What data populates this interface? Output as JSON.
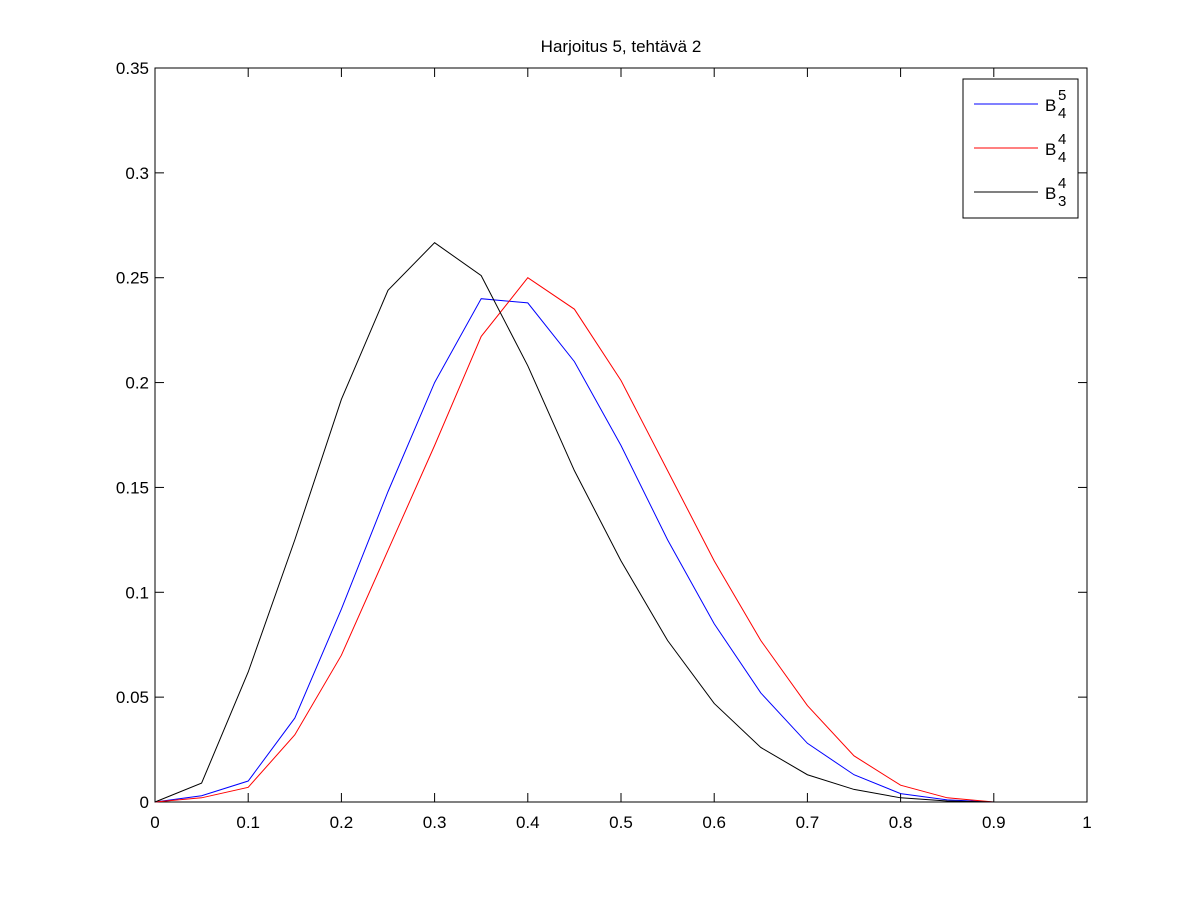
{
  "chart_data": {
    "type": "line",
    "title": "Harjoitus 5, tehtävä 2",
    "x": [
      0,
      0.05,
      0.1,
      0.15,
      0.2,
      0.25,
      0.3,
      0.35,
      0.4,
      0.45,
      0.5,
      0.55,
      0.6,
      0.65,
      0.7,
      0.75,
      0.8,
      0.85,
      0.9,
      0.95,
      1
    ],
    "series": [
      {
        "name": "B",
        "subscript": "4",
        "superscript": "5",
        "color": "#0000ff",
        "values": [
          0,
          0.003,
          0.01,
          0.04,
          0.092,
          0.148,
          0.2,
          0.24,
          0.238,
          0.21,
          0.17,
          0.125,
          0.085,
          0.052,
          0.028,
          0.013,
          0.004,
          0.001,
          0,
          0,
          0
        ]
      },
      {
        "name": "B",
        "subscript": "4",
        "superscript": "4",
        "color": "#ff0000",
        "values": [
          0,
          0.002,
          0.007,
          0.032,
          0.07,
          0.12,
          0.17,
          0.222,
          0.25,
          0.235,
          0.201,
          0.158,
          0.115,
          0.077,
          0.046,
          0.022,
          0.008,
          0.002,
          0,
          0,
          0
        ]
      },
      {
        "name": "B",
        "subscript": "3",
        "superscript": "4",
        "color": "#000000",
        "values": [
          0,
          0.009,
          0.062,
          0.125,
          0.192,
          0.244,
          0.2667,
          0.251,
          0.208,
          0.158,
          0.115,
          0.077,
          0.047,
          0.026,
          0.013,
          0.006,
          0.002,
          0.0005,
          0,
          0,
          0
        ]
      }
    ],
    "xlim": [
      0,
      1
    ],
    "xticks": [
      0,
      0.1,
      0.2,
      0.3,
      0.4,
      0.5,
      0.6,
      0.7,
      0.8,
      0.9,
      1
    ],
    "ylim": [
      0,
      0.35
    ],
    "yticks": [
      0,
      0.05,
      0.1,
      0.15,
      0.2,
      0.25,
      0.3,
      0.35
    ],
    "grid": false,
    "legend": "top-right"
  }
}
